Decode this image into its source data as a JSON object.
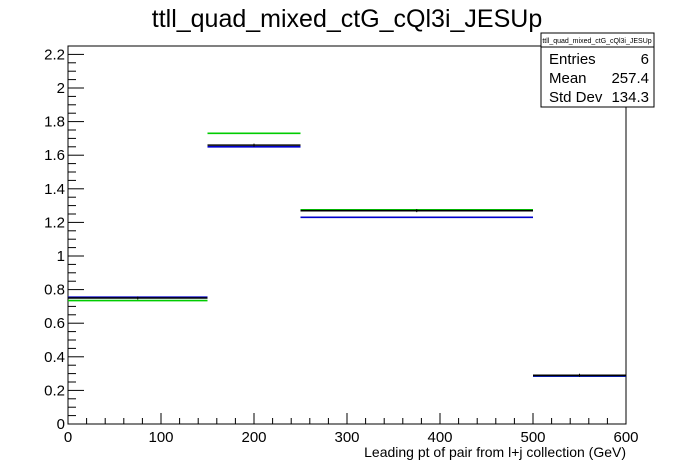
{
  "chart_data": {
    "type": "histogram",
    "title": "ttll_quad_mixed_ctG_cQl3i_JESUp",
    "xlabel": "Leading pt of pair from l+j collection (GeV)",
    "ylabel": "",
    "xlim": [
      0,
      600
    ],
    "ylim": [
      0,
      2.25
    ],
    "x_ticks": [
      "0",
      "100",
      "200",
      "300",
      "400",
      "500",
      "600"
    ],
    "y_ticks": [
      "0",
      "0.2",
      "0.4",
      "0.6",
      "0.8",
      "1",
      "1.2",
      "1.4",
      "1.6",
      "1.8",
      "2",
      "2.2"
    ],
    "bin_edges": [
      0,
      150,
      250,
      500,
      600
    ],
    "series": [
      {
        "color": "#000000",
        "values": [
          0.75,
          1.66,
          1.27,
          0.29
        ]
      },
      {
        "color": "#0000cc",
        "values": [
          0.755,
          1.65,
          1.23,
          0.285
        ]
      },
      {
        "color": "#00cc00",
        "values": [
          0.735,
          1.73,
          1.275,
          0.285
        ]
      }
    ],
    "stats": {
      "name": "ttll_quad_mixed_ctG_cQl3i_JESUp",
      "rows": [
        {
          "label": "Entries",
          "value": "6"
        },
        {
          "label": "Mean",
          "value": "257.4"
        },
        {
          "label": "Std Dev",
          "value": "134.3"
        }
      ]
    }
  }
}
